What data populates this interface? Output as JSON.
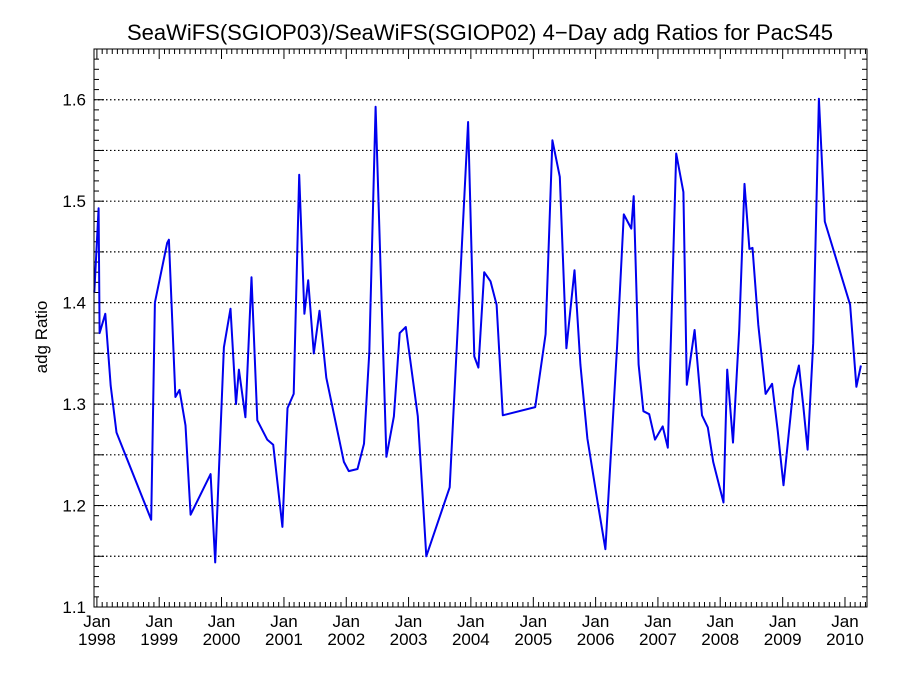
{
  "chart_data": {
    "type": "line",
    "title": "SeaWiFS(SGIOP03)/SeaWiFS(SGIOP02) 4−Day adg Ratios for PacS45",
    "xlabel": "",
    "ylabel": "adg Ratio",
    "ylim": [
      1.1,
      1.65
    ],
    "y_ticks": [
      "1.1",
      "1.2",
      "1.3",
      "1.4",
      "1.5",
      "1.6"
    ],
    "xlim": [
      "1997-12-15",
      "2010-05-10"
    ],
    "x_ticks": [
      {
        "month": "Jan",
        "year": "1998",
        "date": "1998-01-01"
      },
      {
        "month": "Jan",
        "year": "1999",
        "date": "1999-01-01"
      },
      {
        "month": "Jan",
        "year": "2000",
        "date": "2000-01-01"
      },
      {
        "month": "Jan",
        "year": "2001",
        "date": "2001-01-01"
      },
      {
        "month": "Jan",
        "year": "2002",
        "date": "2002-01-01"
      },
      {
        "month": "Jan",
        "year": "2003",
        "date": "2003-01-01"
      },
      {
        "month": "Jan",
        "year": "2004",
        "date": "2004-01-01"
      },
      {
        "month": "Jan",
        "year": "2005",
        "date": "2005-01-01"
      },
      {
        "month": "Jan",
        "year": "2006",
        "date": "2006-01-01"
      },
      {
        "month": "Jan",
        "year": "2007",
        "date": "2007-01-01"
      },
      {
        "month": "Jan",
        "year": "2008",
        "date": "2008-01-01"
      },
      {
        "month": "Jan",
        "year": "2009",
        "date": "2009-01-01"
      },
      {
        "month": "Jan",
        "year": "2010",
        "date": "2010-01-01"
      }
    ],
    "grid": "horizontal dotted",
    "series": [
      {
        "color": "#0000ee",
        "points": [
          [
            "1997-12-17",
            1.41
          ],
          [
            "1998-01-11",
            1.493
          ],
          [
            "1998-01-17",
            1.37
          ],
          [
            "1998-02-19",
            1.389
          ],
          [
            "1998-03-23",
            1.318
          ],
          [
            "1998-04-26",
            1.272
          ],
          [
            "1998-11-15",
            1.186
          ],
          [
            "1998-12-07",
            1.4
          ],
          [
            "1999-02-17",
            1.459
          ],
          [
            "1999-02-27",
            1.462
          ],
          [
            "1999-04-06",
            1.307
          ],
          [
            "1999-04-30",
            1.314
          ],
          [
            "1999-06-04",
            1.279
          ],
          [
            "1999-07-04",
            1.191
          ],
          [
            "1999-10-29",
            1.231
          ],
          [
            "1999-11-25",
            1.144
          ],
          [
            "2000-01-15",
            1.356
          ],
          [
            "2000-02-23",
            1.394
          ],
          [
            "2000-03-26",
            1.3
          ],
          [
            "2000-04-12",
            1.334
          ],
          [
            "2000-05-20",
            1.287
          ],
          [
            "2000-06-25",
            1.425
          ],
          [
            "2000-07-29",
            1.284
          ],
          [
            "2000-09-25",
            1.265
          ],
          [
            "2000-10-30",
            1.26
          ],
          [
            "2000-12-23",
            1.179
          ],
          [
            "2001-01-22",
            1.296
          ],
          [
            "2001-02-27",
            1.31
          ],
          [
            "2001-03-31",
            1.526
          ],
          [
            "2001-05-01",
            1.389
          ],
          [
            "2001-05-23",
            1.422
          ],
          [
            "2001-06-25",
            1.35
          ],
          [
            "2001-07-28",
            1.392
          ],
          [
            "2001-09-06",
            1.326
          ],
          [
            "2001-12-18",
            1.243
          ],
          [
            "2002-01-16",
            1.234
          ],
          [
            "2002-03-08",
            1.236
          ],
          [
            "2002-04-15",
            1.261
          ],
          [
            "2002-05-16",
            1.351
          ],
          [
            "2002-06-22",
            1.593
          ],
          [
            "2002-08-24",
            1.248
          ],
          [
            "2002-10-07",
            1.288
          ],
          [
            "2002-11-10",
            1.37
          ],
          [
            "2002-12-16",
            1.376
          ],
          [
            "2003-02-24",
            1.288
          ],
          [
            "2003-04-15",
            1.15
          ],
          [
            "2003-08-30",
            1.218
          ],
          [
            "2003-12-16",
            1.578
          ],
          [
            "2004-01-21",
            1.347
          ],
          [
            "2004-02-14",
            1.336
          ],
          [
            "2004-03-19",
            1.43
          ],
          [
            "2004-04-25",
            1.421
          ],
          [
            "2004-05-31",
            1.398
          ],
          [
            "2004-07-06",
            1.289
          ],
          [
            "2005-01-12",
            1.297
          ],
          [
            "2005-03-14",
            1.369
          ],
          [
            "2005-04-23",
            1.56
          ],
          [
            "2005-06-05",
            1.524
          ],
          [
            "2005-07-14",
            1.355
          ],
          [
            "2005-08-30",
            1.432
          ],
          [
            "2005-10-04",
            1.339
          ],
          [
            "2005-11-14",
            1.266
          ],
          [
            "2006-01-12",
            1.204
          ],
          [
            "2006-02-27",
            1.157
          ],
          [
            "2006-05-07",
            1.357
          ],
          [
            "2006-06-15",
            1.487
          ],
          [
            "2006-07-29",
            1.473
          ],
          [
            "2006-08-12",
            1.505
          ],
          [
            "2006-09-10",
            1.339
          ],
          [
            "2006-10-08",
            1.293
          ],
          [
            "2006-11-11",
            1.29
          ],
          [
            "2006-12-15",
            1.265
          ],
          [
            "2007-01-29",
            1.278
          ],
          [
            "2007-02-28",
            1.257
          ],
          [
            "2007-04-18",
            1.547
          ],
          [
            "2007-05-30",
            1.509
          ],
          [
            "2007-06-19",
            1.319
          ],
          [
            "2007-08-04",
            1.373
          ],
          [
            "2007-09-16",
            1.289
          ],
          [
            "2007-10-20",
            1.277
          ],
          [
            "2007-11-21",
            1.243
          ],
          [
            "2008-01-20",
            1.203
          ],
          [
            "2008-02-11",
            1.334
          ],
          [
            "2008-03-16",
            1.262
          ],
          [
            "2008-04-21",
            1.373
          ],
          [
            "2008-05-22",
            1.517
          ],
          [
            "2008-06-20",
            1.453
          ],
          [
            "2008-07-08",
            1.454
          ],
          [
            "2008-08-11",
            1.378
          ],
          [
            "2008-09-23",
            1.31
          ],
          [
            "2008-10-31",
            1.32
          ],
          [
            "2008-12-03",
            1.274
          ],
          [
            "2009-01-06",
            1.22
          ],
          [
            "2009-03-04",
            1.315
          ],
          [
            "2009-04-06",
            1.338
          ],
          [
            "2009-05-02",
            1.298
          ],
          [
            "2009-05-27",
            1.255
          ],
          [
            "2009-06-29",
            1.36
          ],
          [
            "2009-08-01",
            1.601
          ],
          [
            "2009-09-05",
            1.48
          ],
          [
            "2010-01-31",
            1.398
          ],
          [
            "2010-03-09",
            1.317
          ],
          [
            "2010-04-04",
            1.338
          ]
        ]
      }
    ]
  }
}
